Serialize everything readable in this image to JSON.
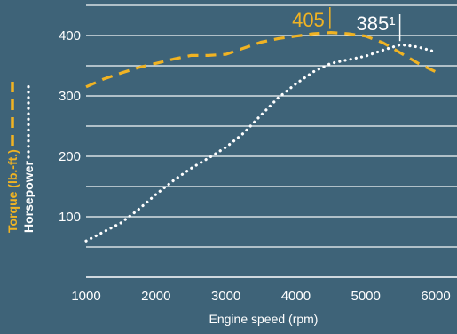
{
  "chart_data": {
    "type": "line",
    "xlabel": "Engine speed (rpm)",
    "xlim": [
      1000,
      6000
    ],
    "ylim": [
      0,
      450
    ],
    "grid": true,
    "x_ticks": [
      {
        "value": 1000,
        "label": "1000"
      },
      {
        "value": 2000,
        "label": "2000"
      },
      {
        "value": 3000,
        "label": "3000"
      },
      {
        "value": 4000,
        "label": "4000"
      },
      {
        "value": 5000,
        "label": "5000"
      },
      {
        "value": 6000,
        "label": "6000"
      }
    ],
    "y_ticks": [
      {
        "value": 100,
        "label": "100"
      },
      {
        "value": 200,
        "label": "200"
      },
      {
        "value": 300,
        "label": "300"
      },
      {
        "value": 400,
        "label": "400"
      }
    ],
    "grid_values": [
      50,
      100,
      150,
      200,
      250,
      300,
      350,
      400,
      450
    ],
    "series": [
      {
        "name": "Torque (lb.-ft.)",
        "color": "#f0b323",
        "style": "dashed",
        "points": [
          [
            1000,
            315
          ],
          [
            1250,
            328
          ],
          [
            1500,
            338
          ],
          [
            1750,
            347
          ],
          [
            2000,
            354
          ],
          [
            2250,
            361
          ],
          [
            2500,
            367
          ],
          [
            2750,
            367
          ],
          [
            3000,
            369
          ],
          [
            3250,
            379
          ],
          [
            3500,
            389
          ],
          [
            3750,
            395
          ],
          [
            4000,
            399
          ],
          [
            4250,
            403
          ],
          [
            4500,
            405
          ],
          [
            4750,
            403
          ],
          [
            5000,
            399
          ],
          [
            5250,
            388
          ],
          [
            5500,
            371
          ],
          [
            5750,
            354
          ],
          [
            6000,
            340
          ]
        ],
        "peak": {
          "x": 4500,
          "y": 405,
          "label": "405"
        }
      },
      {
        "name": "Horsepower",
        "color": "#ffffff",
        "style": "dotted",
        "points": [
          [
            1000,
            60
          ],
          [
            1250,
            75
          ],
          [
            1500,
            90
          ],
          [
            1750,
            112
          ],
          [
            2000,
            137
          ],
          [
            2250,
            160
          ],
          [
            2500,
            180
          ],
          [
            2750,
            197
          ],
          [
            3000,
            215
          ],
          [
            3250,
            238
          ],
          [
            3500,
            268
          ],
          [
            3750,
            297
          ],
          [
            4000,
            320
          ],
          [
            4250,
            340
          ],
          [
            4500,
            354
          ],
          [
            4750,
            360
          ],
          [
            5000,
            366
          ],
          [
            5250,
            376
          ],
          [
            5500,
            385
          ],
          [
            5750,
            381
          ],
          [
            6000,
            373
          ]
        ],
        "peak": {
          "x": 5500,
          "y": 385,
          "label": "385¹"
        }
      }
    ]
  }
}
